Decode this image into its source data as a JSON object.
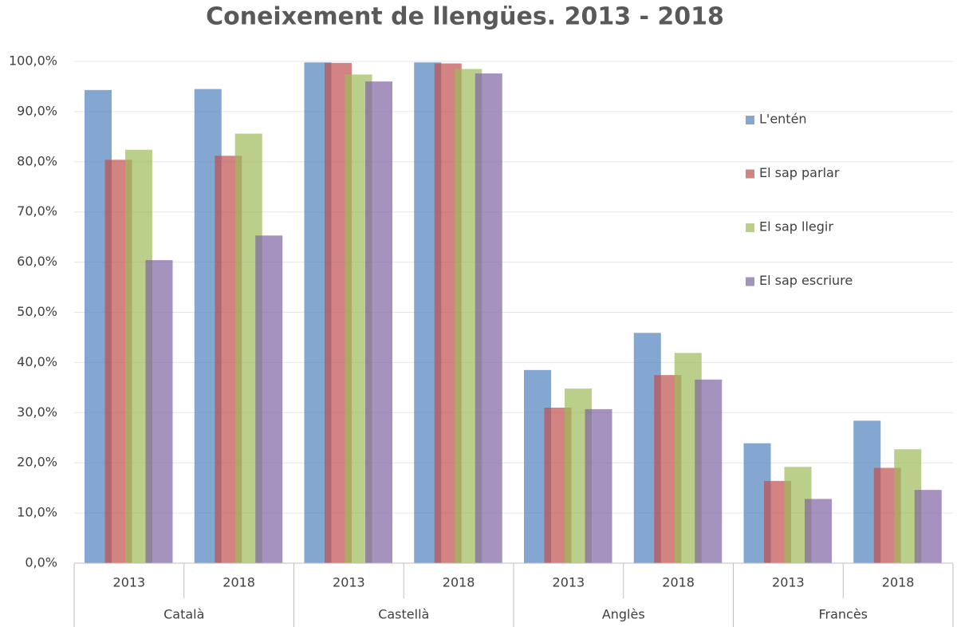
{
  "chart_data": {
    "type": "bar",
    "title": "Coneixement de llengües. 2013 - 2018",
    "groups": [
      "Català",
      "Castellà",
      "Anglès",
      "Francès"
    ],
    "categories": [
      "2013",
      "2018",
      "2013",
      "2018",
      "2013",
      "2018",
      "2013",
      "2018"
    ],
    "series": [
      {
        "name": "L'entén",
        "color": "#4f81bd",
        "values": [
          94.3,
          94.5,
          99.8,
          99.8,
          38.5,
          45.9,
          23.9,
          28.4
        ]
      },
      {
        "name": "El sap parlar",
        "color": "#c0504d",
        "values": [
          80.4,
          81.2,
          99.7,
          99.6,
          31.0,
          37.5,
          16.4,
          19.0
        ]
      },
      {
        "name": "El sap llegir",
        "color": "#9bbb59",
        "values": [
          82.4,
          85.6,
          97.4,
          98.5,
          34.8,
          41.9,
          19.2,
          22.7
        ]
      },
      {
        "name": "El sap escriure",
        "color": "#8064a2",
        "values": [
          60.4,
          65.3,
          96.0,
          97.6,
          30.7,
          36.6,
          12.8,
          14.6
        ]
      }
    ],
    "ylim": [
      0,
      100
    ],
    "yticks": [
      {
        "value": 0,
        "label": "0,0%"
      },
      {
        "value": 10,
        "label": "10,0%"
      },
      {
        "value": 20,
        "label": "20,0%"
      },
      {
        "value": 30,
        "label": "30,0%"
      },
      {
        "value": 40,
        "label": "40,0%"
      },
      {
        "value": 50,
        "label": "50,0%"
      },
      {
        "value": 60,
        "label": "60,0%"
      },
      {
        "value": 70,
        "label": "70,0%"
      },
      {
        "value": 80,
        "label": "80,0%"
      },
      {
        "value": 90,
        "label": "90,0%"
      },
      {
        "value": 100,
        "label": "100,0%"
      }
    ],
    "grid": true,
    "legend": "right"
  }
}
